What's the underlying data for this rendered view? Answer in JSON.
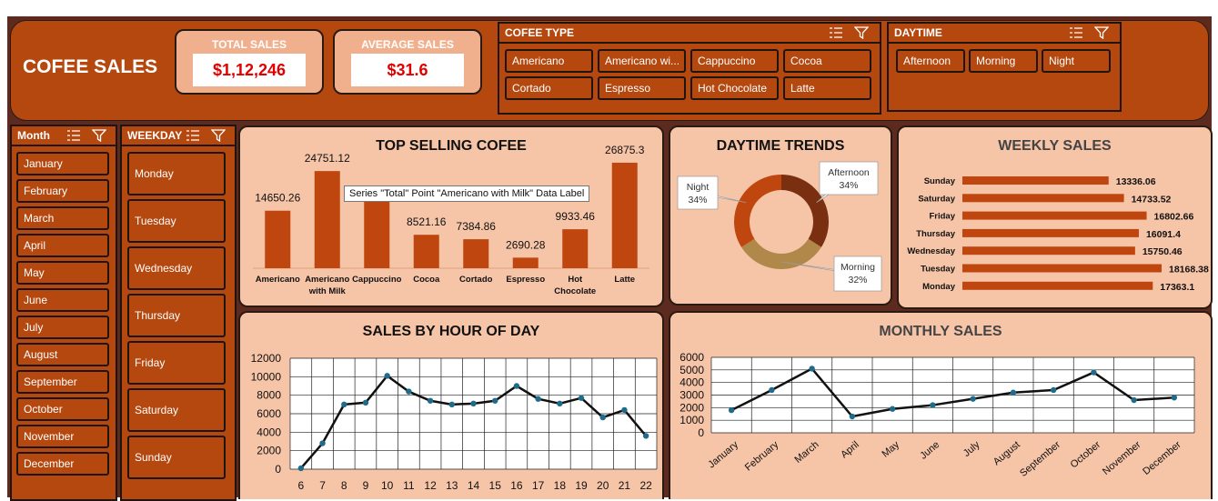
{
  "dashboard": {
    "title": "COFEE SALES"
  },
  "kpis": {
    "total_label": "TOTAL SALES",
    "total_value": "$1,12,246",
    "avg_label": "AVERAGE SALES",
    "avg_value": "$31.6"
  },
  "slicers": {
    "coffee_type": {
      "header": "COFEE TYPE",
      "items": [
        "Americano",
        "Americano wi...",
        "Cappuccino",
        "Cocoa",
        "Cortado",
        "Espresso",
        "Hot Chocolate",
        "Latte"
      ]
    },
    "daytime": {
      "header": "DAYTIME",
      "items": [
        "Afternoon",
        "Morning",
        "Night"
      ]
    },
    "month": {
      "header": "Month",
      "items": [
        "January",
        "February",
        "March",
        "April",
        "May",
        "June",
        "July",
        "August",
        "September",
        "October",
        "November",
        "December"
      ]
    },
    "weekday": {
      "header": "WEEKDAY",
      "items": [
        "Monday",
        "Tuesday",
        "Wednesday",
        "Thursday",
        "Friday",
        "Saturday",
        "Sunday"
      ]
    }
  },
  "tooltip": "Series \"Total\" Point \"Americano with Milk\" Data Label",
  "colors": {
    "background": "#5c2a1e",
    "band": "#b5480f",
    "card": "#f6c4a7",
    "bar": "#c0460f",
    "line": "#111111",
    "marker": "#1f6b8a",
    "donut_afternoon": "#7a2f10",
    "donut_night": "#c0460f",
    "donut_morning": "#b0894a"
  },
  "chart_data": [
    {
      "id": "top_selling",
      "type": "bar",
      "title": "TOP SELLING COFEE",
      "categories": [
        "Americano",
        "Americano with Milk",
        "Cappuccino",
        "Cocoa",
        "Cortado",
        "Espresso",
        "Hot Chocolate",
        "Latte"
      ],
      "category_lines": [
        [
          "Americano"
        ],
        [
          "Americano",
          "with Milk"
        ],
        [
          "Cappuccino"
        ],
        [
          "Cocoa"
        ],
        [
          "Cortado"
        ],
        [
          "Espresso"
        ],
        [
          "Hot",
          "Chocolate"
        ],
        [
          "Latte"
        ]
      ],
      "values": [
        14650.26,
        24751.12,
        17439.14,
        8521.16,
        7384.86,
        2690.28,
        9933.46,
        26875.3
      ],
      "labels": [
        "14650.26",
        "24751.12",
        "",
        "8521.16",
        "7384.86",
        "2690.28",
        "9933.46",
        "26875.3"
      ],
      "ylim": [
        0,
        30000
      ]
    },
    {
      "id": "daytime_trends",
      "type": "pie",
      "title": "DAYTIME TRENDS",
      "slices": [
        {
          "name": "Afternoon",
          "value": 34,
          "label": "34%"
        },
        {
          "name": "Morning",
          "value": 32,
          "label": "32%"
        },
        {
          "name": "Night",
          "value": 34,
          "label": "34%"
        }
      ]
    },
    {
      "id": "weekly_sales",
      "type": "bar",
      "title": "WEEKLY SALES",
      "categories": [
        "Sunday",
        "Saturday",
        "Friday",
        "Thursday",
        "Wednesday",
        "Tuesday",
        "Monday"
      ],
      "values": [
        13336.06,
        14733.52,
        16802.66,
        16091.4,
        15750.46,
        18168.38,
        17363.1
      ],
      "labels": [
        "13336.06",
        "14733.52",
        "16802.66",
        "16091.4",
        "15750.46",
        "18168.38",
        "17363.1"
      ],
      "xlim": [
        0,
        18500
      ]
    },
    {
      "id": "sales_by_hour",
      "type": "line",
      "title": "SALES BY HOUR OF DAY",
      "x": [
        6,
        7,
        8,
        9,
        10,
        11,
        12,
        13,
        14,
        15,
        16,
        17,
        18,
        19,
        20,
        21,
        22
      ],
      "values": [
        100,
        2800,
        7000,
        7200,
        10100,
        8400,
        7400,
        7000,
        7100,
        7400,
        9000,
        7600,
        7100,
        7700,
        5600,
        6400,
        3600
      ],
      "ylim": [
        0,
        12000
      ],
      "yticks": [
        "0",
        "2000",
        "4000",
        "6000",
        "8000",
        "10000",
        "12000"
      ],
      "grid": true
    },
    {
      "id": "monthly_sales",
      "type": "line",
      "title": "MONTHLY SALES",
      "categories": [
        "January",
        "February",
        "March",
        "April",
        "May",
        "June",
        "July",
        "August",
        "September",
        "October",
        "November",
        "December"
      ],
      "values": [
        1800,
        3400,
        5100,
        1300,
        1900,
        2200,
        2700,
        3200,
        3400,
        4800,
        2600,
        2800
      ],
      "ylim": [
        0,
        6000
      ],
      "yticks": [
        "0",
        "1000",
        "2000",
        "3000",
        "4000",
        "5000",
        "6000"
      ],
      "grid": true
    }
  ]
}
